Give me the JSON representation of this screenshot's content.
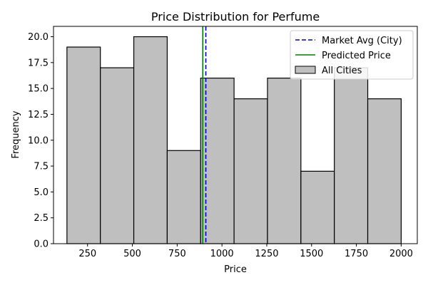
{
  "chart_data": {
    "type": "bar",
    "title": "Price Distribution for Perfume",
    "xlabel": "Price",
    "ylabel": "Frequency",
    "bin_edges": [
      135,
      321.5,
      508,
      694.5,
      881,
      1067.5,
      1254,
      1440.5,
      1627,
      1813.5,
      2000
    ],
    "counts": [
      19,
      17,
      20,
      9,
      16,
      14,
      16,
      7,
      17,
      14
    ],
    "xlim": [
      60,
      2090
    ],
    "ylim": [
      0,
      21
    ],
    "xticks": [
      250,
      500,
      750,
      1000,
      1250,
      1500,
      1750,
      2000
    ],
    "yticks": [
      0.0,
      2.5,
      5.0,
      7.5,
      10.0,
      12.5,
      15.0,
      17.5,
      20.0
    ],
    "xtick_labels": [
      "250",
      "500",
      "750",
      "1000",
      "1250",
      "1500",
      "1750",
      "2000"
    ],
    "ytick_labels": [
      "0.0",
      "2.5",
      "5.0",
      "7.5",
      "10.0",
      "12.5",
      "15.0",
      "17.5",
      "20.0"
    ],
    "reference_lines": [
      {
        "name": "Market Avg (City)",
        "x": 910,
        "style": "dashed",
        "color": "#0000cc"
      },
      {
        "name": "Predicted Price",
        "x": 893,
        "style": "solid",
        "color": "#008000"
      }
    ],
    "series": [
      {
        "name": "All Cities",
        "color": "#bfbfbf",
        "edgecolor": "#000000"
      }
    ],
    "legend": {
      "placement": "top-right",
      "entries": [
        "Market Avg (City)",
        "Predicted Price",
        "All Cities"
      ]
    },
    "grid": false
  }
}
